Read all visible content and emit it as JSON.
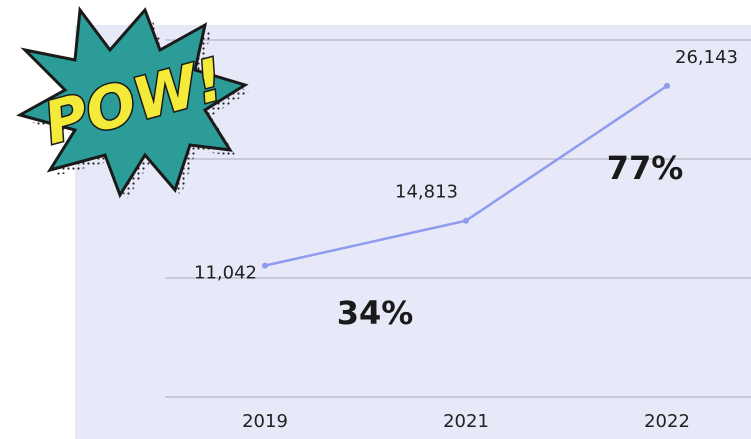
{
  "chart_data": {
    "type": "line",
    "categories": [
      "2019",
      "2021",
      "2022"
    ],
    "series": [
      {
        "color": "#8f9bef",
        "values": [
          11042,
          14813,
          26143
        ],
        "value_labels": [
          "11,042",
          "14,813",
          "26,143"
        ]
      }
    ],
    "ylim": [
      0,
      30000
    ],
    "yticks": [
      0,
      10000,
      20000,
      30000
    ],
    "grid": true,
    "annotations": [
      "34%",
      "77%"
    ],
    "badge": "POW!"
  }
}
